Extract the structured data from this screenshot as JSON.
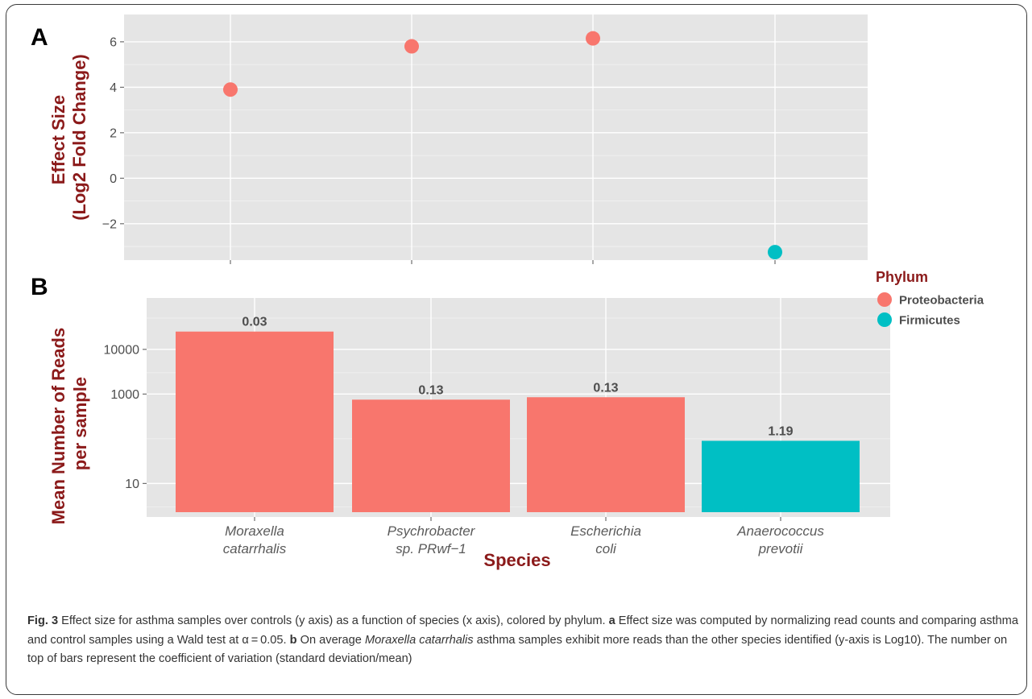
{
  "chart_data": [
    {
      "type": "scatter",
      "panel": "A",
      "categories": [
        "Moraxella catarrhalis",
        "Psychrobacter sp. PRwf-1",
        "Escherichia coli",
        "Anaerococcus prevotii"
      ],
      "series": [
        {
          "name": "Proteobacteria",
          "color": "#f8766d",
          "points": [
            {
              "category": "Moraxella catarrhalis",
              "value": 3.9
            },
            {
              "category": "Psychrobacter sp. PRwf-1",
              "value": 5.8
            },
            {
              "category": "Escherichia coli",
              "value": 6.15
            }
          ]
        },
        {
          "name": "Firmicutes",
          "color": "#00bfc4",
          "points": [
            {
              "category": "Anaerococcus prevotii",
              "value": -3.25
            }
          ]
        }
      ],
      "ylabel_lines": [
        "Effect Size",
        "(Log2 Fold Change)"
      ],
      "yticks": [
        -2,
        0,
        2,
        4,
        6
      ],
      "ytick_labels": [
        "−2",
        "0",
        "2",
        "4",
        "6"
      ],
      "ylim": [
        -3.6,
        7.2
      ],
      "grid": true
    },
    {
      "type": "bar",
      "panel": "B",
      "categories": [
        "Moraxella catarrhalis",
        "Psychrobacter sp. PRwf-1",
        "Escherichia coli",
        "Anaerococcus prevotii"
      ],
      "category_label_lines": [
        [
          "Moraxella",
          "catarrhalis"
        ],
        [
          "Psychrobacter",
          "sp. PRwf−1"
        ],
        [
          "Escherichia",
          "coli"
        ],
        [
          "Anaerococcus",
          "prevotii"
        ]
      ],
      "values": [
        25000,
        750,
        850,
        90
      ],
      "colors": [
        "#f8766d",
        "#f8766d",
        "#f8766d",
        "#00bfc4"
      ],
      "data_labels": [
        "0.03",
        "0.13",
        "0.13",
        "1.19"
      ],
      "yscale": "log10",
      "yticks": [
        10,
        1000,
        10000
      ],
      "ytick_labels": [
        "10",
        "1000",
        "10000"
      ],
      "ylabel_lines": [
        "Mean Number of Reads",
        "per sample"
      ],
      "xlabel": "Species",
      "grid": true
    }
  ],
  "legend": {
    "title": "Phylum",
    "placement": "right",
    "items": [
      {
        "label": "Proteobacteria",
        "color": "#f8766d"
      },
      {
        "label": "Firmicutes",
        "color": "#00bfc4"
      }
    ]
  },
  "caption": {
    "fig_label": "Fig. 3",
    "main": " Effect size for asthma samples over controls (y axis) as a function of species (x axis), colored by phylum. ",
    "a_label": "a",
    "a_text": " Effect size was computed by normalizing read counts and comparing asthma and control samples using a Wald test at α = 0.05. ",
    "b_label": "b",
    "b_text_1": " On average ",
    "b_species": "Moraxella catarrhalis",
    "b_text_2": " asthma samples exhibit more reads than the other species identified (y-axis is Log10). The number on top of bars represent the coefficient of variation (standard deviation/mean)"
  }
}
